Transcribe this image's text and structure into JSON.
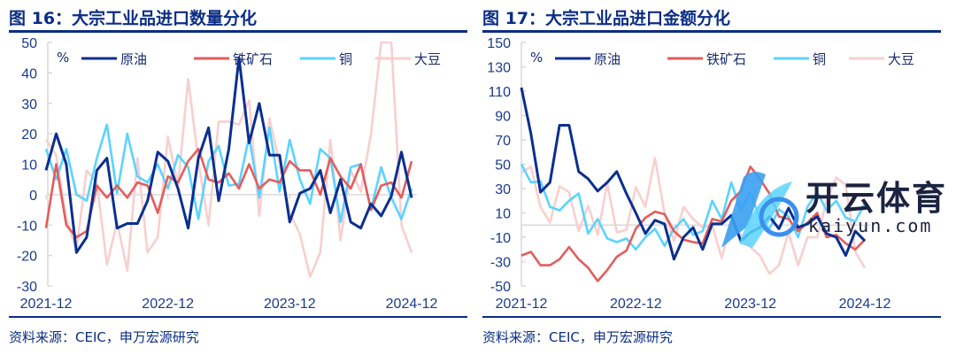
{
  "colors": {
    "title": "#0b2d84",
    "crude": "#0a2f8f",
    "iron": "#e35d5b",
    "copper": "#5bd3ff",
    "soy": "#f8cfcf",
    "tick": "#1a3a8f"
  },
  "chart_data": [
    {
      "type": "line",
      "title": "图 16：大宗工业品进口数量分化",
      "ylabel": "%",
      "ylim": [
        -30,
        50
      ],
      "yticks": [
        50,
        40,
        30,
        20,
        10,
        0,
        -10,
        -20,
        -30
      ],
      "xtick_labels": [
        "2021-12",
        "2022-12",
        "2023-12",
        "2024-12"
      ],
      "x_start": "2021-12",
      "x_end": "2024-12",
      "x_frequency": "monthly",
      "legend": "top",
      "grid": false,
      "series": [
        {
          "name": "原油",
          "values": [
            8,
            20,
            10,
            -19,
            -14,
            8,
            12,
            -11,
            -9.5,
            -9.5,
            -2,
            14,
            11,
            2,
            -11,
            12,
            22,
            -2,
            15,
            45,
            17,
            30,
            13,
            13,
            -9,
            0.5,
            2,
            8,
            -6,
            5,
            -9,
            -11,
            -3,
            -7,
            -0.5,
            14,
            -1
          ]
        },
        {
          "name": "铁矿石",
          "values": [
            -11,
            10,
            -10,
            -14,
            -12,
            3,
            -1,
            3,
            -1,
            4,
            3,
            -6,
            6,
            4,
            11,
            15,
            5,
            4,
            7,
            2,
            10,
            2,
            5,
            4,
            11,
            8,
            8,
            0,
            12,
            6,
            2,
            10,
            -5,
            3,
            4,
            -1,
            11
          ]
        },
        {
          "name": "铜",
          "values": [
            15,
            5,
            15,
            0,
            -2,
            12,
            23,
            0.5,
            20,
            6,
            4,
            10,
            2,
            13,
            9,
            -8,
            11,
            16,
            3,
            3.5,
            19,
            -1,
            22,
            1,
            18,
            5,
            -3,
            15,
            12,
            -9,
            9,
            10,
            -5,
            9,
            -1,
            -8,
            2
          ]
        },
        {
          "name": "大豆",
          "values": [
            18,
            13,
            -8,
            -18,
            8,
            4,
            -23,
            -9,
            -25,
            12,
            -19,
            -14,
            19,
            3,
            38,
            11,
            -10,
            24,
            24,
            23,
            31,
            -7,
            25,
            10,
            -6,
            -13,
            -27,
            -19,
            18,
            -15,
            8,
            1,
            20,
            55,
            55,
            -10,
            -19
          ]
        }
      ]
    },
    {
      "type": "line",
      "title": "图 17：大宗工业品进口金额分化",
      "ylabel": "%",
      "ylim": [
        -50,
        150
      ],
      "yticks": [
        150,
        130,
        110,
        90,
        70,
        50,
        30,
        10,
        -10,
        -30,
        -50
      ],
      "xtick_labels": [
        "2021-12",
        "2022-12",
        "2023-12",
        "2024-12"
      ],
      "x_start": "2021-12",
      "x_end": "2024-12",
      "x_frequency": "monthly",
      "legend": "top",
      "grid": false,
      "series": [
        {
          "name": "原油",
          "values": [
            113,
            75,
            27,
            35,
            82,
            82,
            44,
            38,
            28,
            35,
            44,
            26,
            10,
            -7,
            4,
            1,
            -28,
            -10,
            -2,
            -20,
            1,
            1,
            8,
            -13,
            -6,
            -2,
            7,
            -3,
            14,
            -2,
            1,
            7,
            -7,
            -10,
            -25,
            -5,
            -13
          ]
        },
        {
          "name": "铁矿石",
          "values": [
            -25,
            -22,
            -33,
            -33,
            -28,
            -18,
            -28,
            -35,
            -46,
            -37,
            -26,
            -21,
            -3,
            6,
            11,
            9,
            -5,
            -12,
            -14,
            -15,
            5,
            3,
            20,
            28,
            48,
            38,
            26,
            7,
            5,
            -5,
            2,
            10,
            -10,
            -8,
            -15,
            -20,
            -12
          ]
        },
        {
          "name": "铜",
          "values": [
            50,
            35,
            36,
            15,
            12,
            20,
            26,
            -7,
            5,
            -11,
            -14,
            -11,
            -20,
            -10,
            -3,
            -17,
            -3,
            5,
            -8,
            -5,
            20,
            5,
            35,
            12,
            27,
            5,
            -3,
            13,
            7,
            -10,
            15,
            27,
            12,
            20,
            6,
            3,
            18
          ]
        },
        {
          "name": "大豆",
          "values": [
            43,
            48,
            15,
            2,
            32,
            27,
            -5,
            16,
            -8,
            34,
            -6,
            -4,
            31,
            15,
            55,
            10,
            -13,
            15,
            5,
            -2,
            0,
            -27,
            2,
            -8,
            -18,
            -25,
            -40,
            -33,
            -6,
            -33,
            -10,
            -10,
            20,
            39,
            33,
            -22,
            -35
          ]
        }
      ]
    }
  ],
  "panels": [
    {
      "title": "图 16：大宗工业品进口数量分化",
      "source": "资料来源：CEIC，申万宏源研究"
    },
    {
      "title": "图 17：大宗工业品进口金额分化",
      "source": "资料来源：CEIC，申万宏源研究"
    }
  ],
  "watermark": {
    "text": "开云体育",
    "url": "kaiyun.com"
  }
}
